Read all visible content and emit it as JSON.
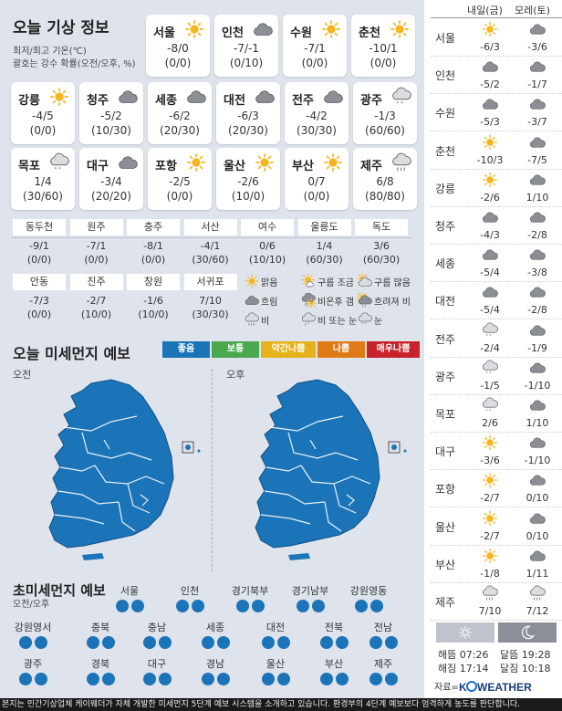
{
  "today": {
    "title": "오늘 기상 정보",
    "note1": "최저/최고 기온(℃)",
    "note2": "괄호는 강수 확률(오전/오후, %)",
    "cards": [
      {
        "name": "서울",
        "icon": "sun",
        "temp": "-8/0",
        "prob": "(0/0)"
      },
      {
        "name": "인천",
        "icon": "cloud",
        "temp": "-7/-1",
        "prob": "(0/10)"
      },
      {
        "name": "수원",
        "icon": "sun",
        "temp": "-7/1",
        "prob": "(0/0)"
      },
      {
        "name": "춘천",
        "icon": "sun",
        "temp": "-10/1",
        "prob": "(0/0)"
      },
      {
        "name": "강릉",
        "icon": "sun",
        "temp": "-4/5",
        "prob": "(0/0)"
      },
      {
        "name": "청주",
        "icon": "cloud",
        "temp": "-5/2",
        "prob": "(10/30)"
      },
      {
        "name": "세종",
        "icon": "cloud",
        "temp": "-6/2",
        "prob": "(20/30)"
      },
      {
        "name": "대전",
        "icon": "cloud",
        "temp": "-6/3",
        "prob": "(20/30)"
      },
      {
        "name": "전주",
        "icon": "cloud",
        "temp": "-4/2",
        "prob": "(30/30)"
      },
      {
        "name": "광주",
        "icon": "cloud-snow",
        "temp": "-1/3",
        "prob": "(60/60)"
      },
      {
        "name": "목포",
        "icon": "cloud-snow",
        "temp": "1/4",
        "prob": "(30/60)"
      },
      {
        "name": "대구",
        "icon": "cloud",
        "temp": "-3/4",
        "prob": "(20/20)"
      },
      {
        "name": "포항",
        "icon": "sun",
        "temp": "-2/5",
        "prob": "(0/0)"
      },
      {
        "name": "울산",
        "icon": "sun",
        "temp": "-2/6",
        "prob": "(10/0)"
      },
      {
        "name": "부산",
        "icon": "sun",
        "temp": "0/7",
        "prob": "(0/0)"
      },
      {
        "name": "제주",
        "icon": "cloud-rain",
        "temp": "6/8",
        "prob": "(80/80)"
      }
    ],
    "small": [
      {
        "name": "동두천",
        "temp": "-9/1",
        "prob": "(0/0)"
      },
      {
        "name": "원주",
        "temp": "-7/1",
        "prob": "(0/0)"
      },
      {
        "name": "충주",
        "temp": "-8/1",
        "prob": "(0/0)"
      },
      {
        "name": "서산",
        "temp": "-4/1",
        "prob": "(30/60)"
      },
      {
        "name": "여수",
        "temp": "0/6",
        "prob": "(10/10)"
      },
      {
        "name": "울릉도",
        "temp": "1/4",
        "prob": "(60/30)"
      },
      {
        "name": "독도",
        "temp": "3/6",
        "prob": "(60/30)"
      },
      {
        "name": "안동",
        "temp": "-7/3",
        "prob": "(0/0)"
      },
      {
        "name": "진주",
        "temp": "-2/7",
        "prob": "(10/0)"
      },
      {
        "name": "창원",
        "temp": "-1/6",
        "prob": "(10/0)"
      },
      {
        "name": "서귀포",
        "temp": "7/10",
        "prob": "(30/30)"
      }
    ],
    "legend": [
      {
        "label": "맑음",
        "icon": "sun"
      },
      {
        "label": "구름 조금",
        "icon": "sun-cloud"
      },
      {
        "label": "구름 많음",
        "icon": "cloud-sun"
      },
      {
        "label": "흐림",
        "icon": "cloud"
      },
      {
        "label": "비온후 갬",
        "icon": "rain-sun"
      },
      {
        "label": "흐려져 비",
        "icon": "sun-rain"
      },
      {
        "label": "비",
        "icon": "cloud-rain"
      },
      {
        "label": "비 또는 눈",
        "icon": "cloud-rainsnow"
      },
      {
        "label": "눈",
        "icon": "cloud-snow"
      }
    ]
  },
  "dust": {
    "title": "오늘 미세먼지 예보",
    "levels": [
      {
        "label": "좋음",
        "color": "#1c74b8"
      },
      {
        "label": "보통",
        "color": "#4aa84e"
      },
      {
        "label": "약간나쁨",
        "color": "#e6b21c"
      },
      {
        "label": "나쁨",
        "color": "#e07a16"
      },
      {
        "label": "매우나쁨",
        "color": "#c8232c"
      }
    ],
    "am": "오전",
    "pm": "오후",
    "map_color": "#1c74b8"
  },
  "ultra": {
    "title": "초미세먼지 예보",
    "sub": "오전/오후",
    "rows": [
      [
        "서울",
        "인천",
        "경기북부",
        "경기남부",
        "강원영동"
      ],
      [
        "강원영서",
        "충북",
        "충남",
        "세종",
        "대전",
        "전북",
        "전남"
      ],
      [
        "광주",
        "경북",
        "대구",
        "경남",
        "울산",
        "부산",
        "제주"
      ]
    ]
  },
  "forecast": {
    "col1": "내일(금)",
    "col2": "모레(토)",
    "rows": [
      {
        "city": "서울",
        "i1": "sun",
        "t1": "-6/3",
        "i2": "cloud",
        "t2": "-3/6"
      },
      {
        "city": "인천",
        "i1": "cloud",
        "t1": "-5/2",
        "i2": "cloud",
        "t2": "-1/7"
      },
      {
        "city": "수원",
        "i1": "cloud",
        "t1": "-5/3",
        "i2": "cloud",
        "t2": "-3/7"
      },
      {
        "city": "춘천",
        "i1": "sun",
        "t1": "-10/3",
        "i2": "cloud",
        "t2": "-7/5"
      },
      {
        "city": "강릉",
        "i1": "sun",
        "t1": "-2/6",
        "i2": "cloud",
        "t2": "1/10"
      },
      {
        "city": "청주",
        "i1": "cloud",
        "t1": "-4/3",
        "i2": "cloud",
        "t2": "-2/8"
      },
      {
        "city": "세종",
        "i1": "cloud",
        "t1": "-5/4",
        "i2": "cloud",
        "t2": "-3/8"
      },
      {
        "city": "대전",
        "i1": "cloud",
        "t1": "-5/4",
        "i2": "cloud",
        "t2": "-2/8"
      },
      {
        "city": "전주",
        "i1": "cloud-snow",
        "t1": "-2/4",
        "i2": "cloud",
        "t2": "-1/9"
      },
      {
        "city": "광주",
        "i1": "cloud-snow",
        "t1": "-1/5",
        "i2": "cloud",
        "t2": "-1/10"
      },
      {
        "city": "목포",
        "i1": "cloud-snow",
        "t1": "2/6",
        "i2": "cloud",
        "t2": "1/10"
      },
      {
        "city": "대구",
        "i1": "sun",
        "t1": "-3/6",
        "i2": "cloud",
        "t2": "-1/10"
      },
      {
        "city": "포항",
        "i1": "sun",
        "t1": "-2/7",
        "i2": "cloud",
        "t2": "0/10"
      },
      {
        "city": "울산",
        "i1": "sun",
        "t1": "-2/7",
        "i2": "cloud",
        "t2": "0/10"
      },
      {
        "city": "부산",
        "i1": "sun",
        "t1": "-1/8",
        "i2": "cloud",
        "t2": "1/11"
      },
      {
        "city": "제주",
        "i1": "cloud-rain",
        "t1": "7/10",
        "i2": "cloud-rain",
        "t2": "7/12"
      }
    ],
    "sunrise": "해뜸 07:26",
    "sunset": "해짐 17:14",
    "moonrise": "달뜸 19:28",
    "moonset": "달짐 10:18",
    "source": "자료="
  },
  "footer": "본지는 민간기상업체 케이웨더가 자체 개발한 미세먼지 5단계 예보 시스템을 소개하고 있습니다. 환경부의 4단계 예보보다 엄격하게 농도를 판단합니다."
}
